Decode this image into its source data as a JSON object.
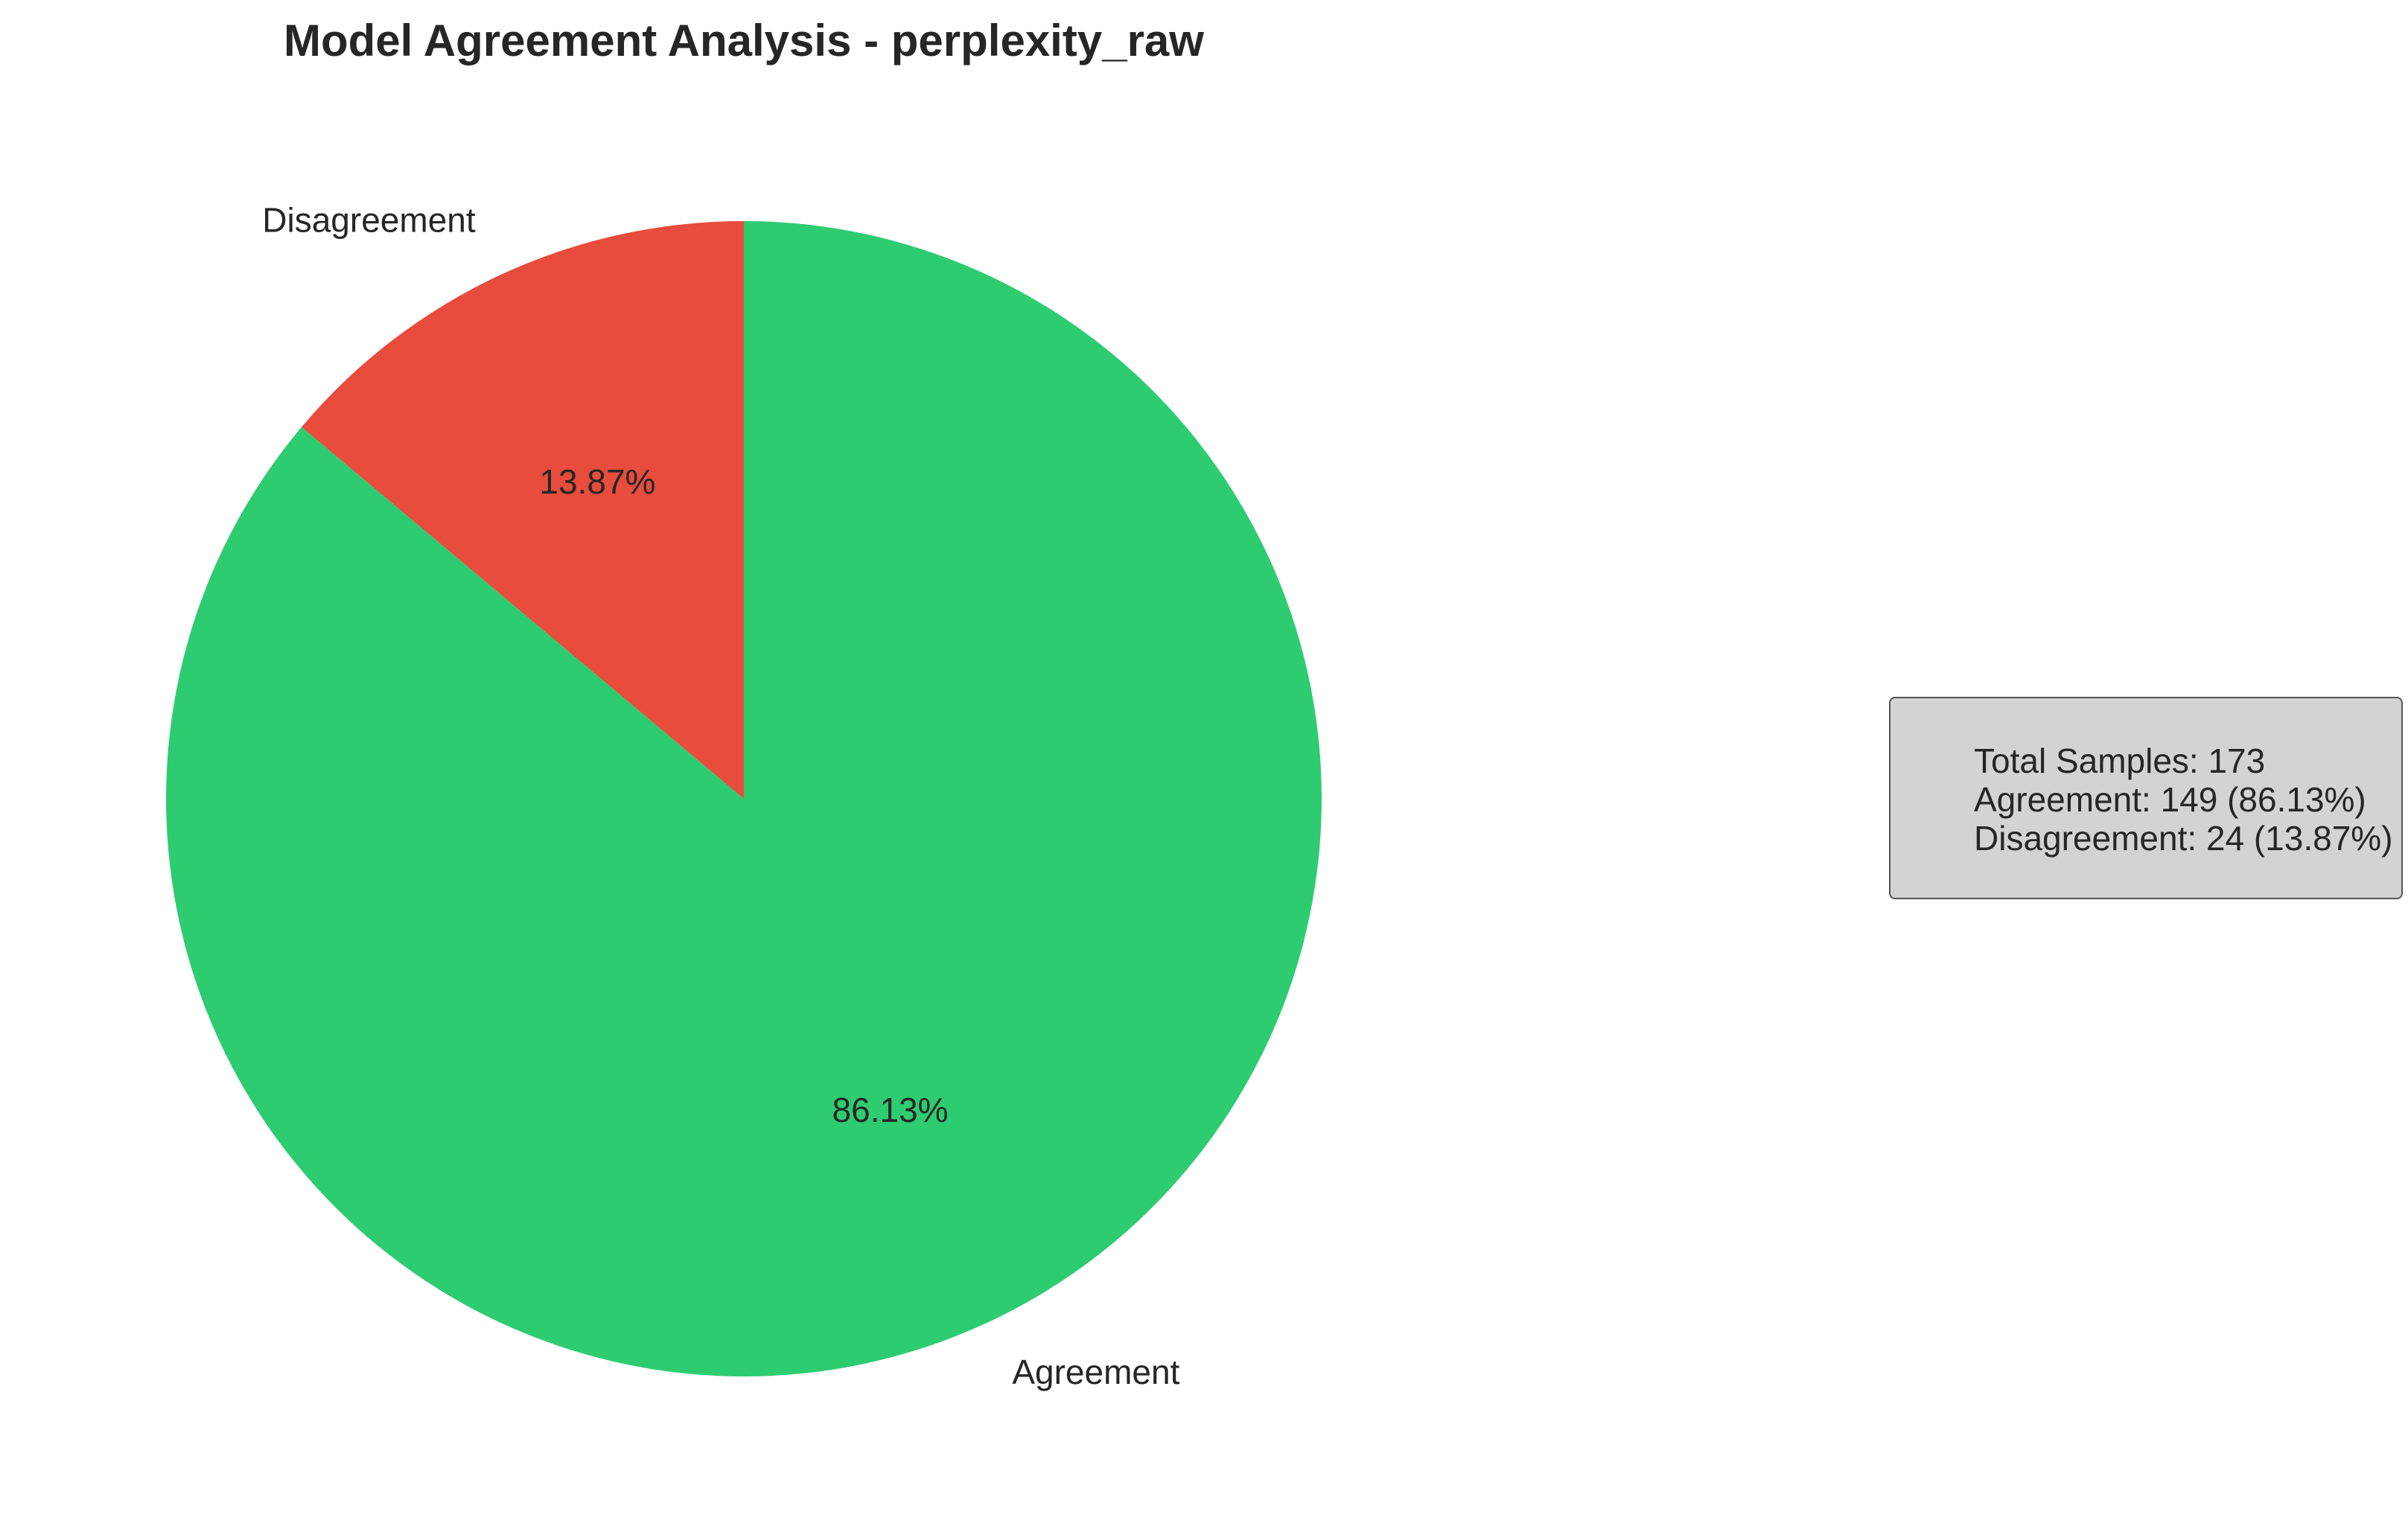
{
  "chart_data": {
    "type": "pie",
    "title": "Model Agreement Analysis - perplexity_raw",
    "categories": [
      "Agreement",
      "Disagreement"
    ],
    "values": [
      149,
      24
    ],
    "percent_labels": [
      "86.13%",
      "13.87%"
    ],
    "colors": [
      "#2ecc71",
      "#e74c3c"
    ],
    "start_angle_deg": 90,
    "direction": "clockwise",
    "legend": "none",
    "annotation": {
      "lines": [
        "Total Samples: 173",
        "Agreement: 149 (86.13%)",
        "Disagreement: 24 (13.87%)"
      ],
      "placement": "right",
      "background": "#d3d3d3"
    }
  }
}
